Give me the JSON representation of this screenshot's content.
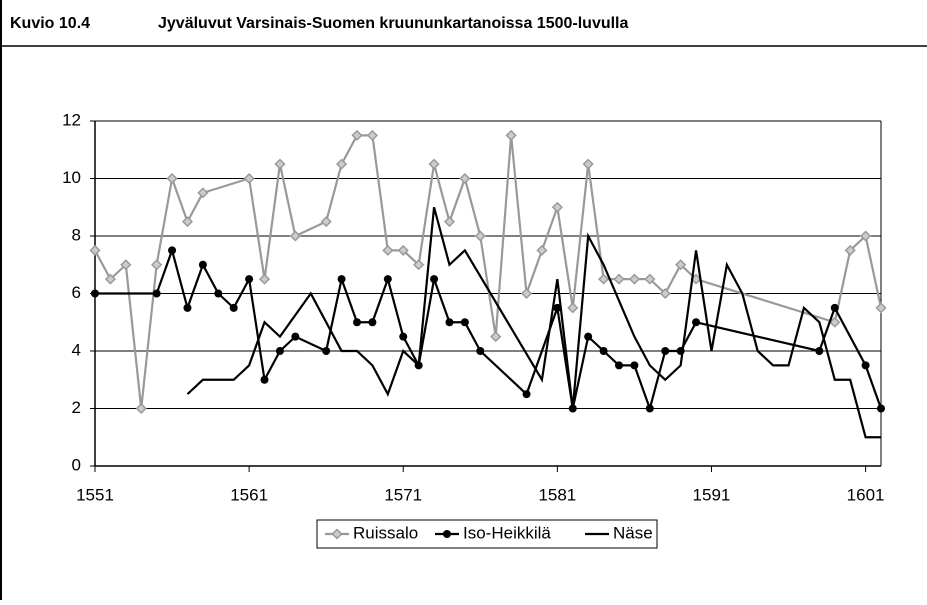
{
  "header": {
    "label": "Kuvio 10.4",
    "title": "Jyväluvut Varsinais-Suomen kruununkartanoissa 1500-luvulla"
  },
  "chart_data": {
    "type": "line",
    "xlim": [
      1551,
      1602
    ],
    "xticks": [
      1551,
      1561,
      1571,
      1581,
      1591,
      1601
    ],
    "ylim": [
      0,
      12
    ],
    "yticks": [
      0,
      2,
      4,
      6,
      8,
      10,
      12
    ],
    "grid": true,
    "legend": "bottom",
    "series": [
      {
        "name": "Ruissalo",
        "color": "#999999",
        "marker": "diamond",
        "x": [
          1551,
          1552,
          1553,
          1554,
          1555,
          1556,
          1557,
          1558,
          1561,
          1562,
          1563,
          1564,
          1566,
          1567,
          1568,
          1569,
          1570,
          1571,
          1572,
          1573,
          1574,
          1575,
          1576,
          1577,
          1578,
          1579,
          1580,
          1581,
          1582,
          1583,
          1584,
          1585,
          1586,
          1587,
          1588,
          1589,
          1590,
          1599,
          1600,
          1601,
          1602
        ],
        "values": [
          7.5,
          6.5,
          7,
          2,
          7,
          10,
          8.5,
          9.5,
          10,
          6.5,
          10.5,
          8,
          8.5,
          10.5,
          11.5,
          11.5,
          7.5,
          7.5,
          7,
          10.5,
          8.5,
          10,
          8,
          4.5,
          11.5,
          6,
          7.5,
          9,
          5.5,
          10.5,
          6.5,
          6.5,
          6.5,
          6.5,
          6,
          7,
          6.5,
          5,
          7.5,
          8,
          5.5
        ]
      },
      {
        "name": "Iso-Heikkilä",
        "color": "#000000",
        "marker": "circle",
        "x": [
          1551,
          1555,
          1556,
          1557,
          1558,
          1559,
          1560,
          1561,
          1562,
          1563,
          1564,
          1566,
          1567,
          1568,
          1569,
          1570,
          1571,
          1572,
          1573,
          1574,
          1575,
          1576,
          1579,
          1581,
          1582,
          1583,
          1584,
          1585,
          1586,
          1587,
          1588,
          1589,
          1590,
          1598,
          1599,
          1601,
          1602
        ],
        "values": [
          6,
          6,
          7.5,
          5.5,
          7,
          6,
          5.5,
          6.5,
          3,
          4,
          4.5,
          4,
          6.5,
          5,
          5,
          6.5,
          4.5,
          3.5,
          6.5,
          5,
          5,
          4,
          2.5,
          5.5,
          2,
          4.5,
          4,
          3.5,
          3.5,
          2,
          4,
          4,
          5,
          4,
          5.5,
          3.5,
          2
        ]
      },
      {
        "name": "Näse",
        "color": "#000000",
        "marker": "none",
        "x": [
          1557,
          1558,
          1559,
          1560,
          1561,
          1562,
          1563,
          1565,
          1567,
          1568,
          1569,
          1570,
          1571,
          1572,
          1573,
          1574,
          1575,
          1580,
          1581,
          1582,
          1583,
          1584,
          1586,
          1587,
          1588,
          1589,
          1590,
          1591,
          1592,
          1593,
          1594,
          1595,
          1596,
          1597,
          1598,
          1599,
          1600,
          1601,
          1602
        ],
        "values": [
          2.5,
          3,
          3,
          3,
          3.5,
          5,
          4.5,
          6,
          4,
          4,
          3.5,
          2.5,
          4,
          3.5,
          9,
          7,
          7.5,
          3,
          6.5,
          2,
          8,
          7,
          4.5,
          3.5,
          3,
          3.5,
          7.5,
          4,
          7,
          6,
          4,
          3.5,
          3.5,
          5.5,
          5,
          3,
          3,
          1,
          1
        ]
      }
    ]
  }
}
